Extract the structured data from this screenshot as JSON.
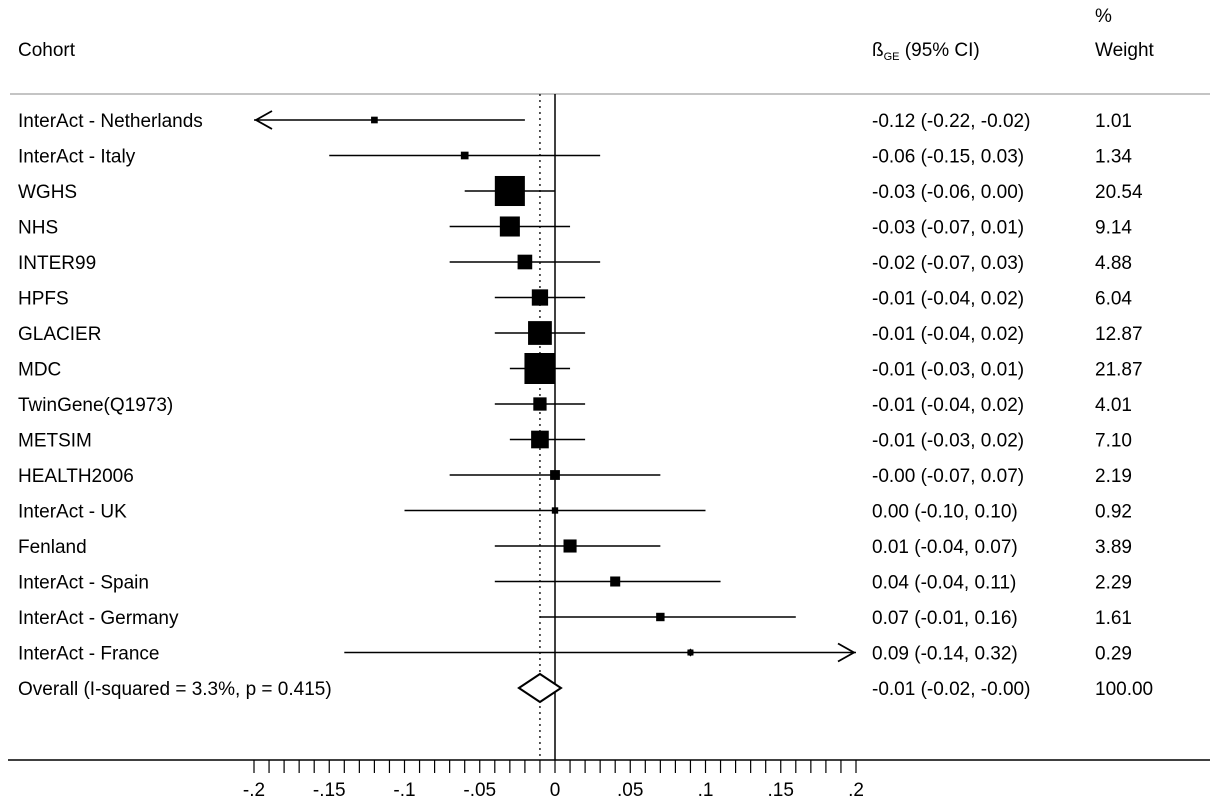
{
  "headers": {
    "cohort": "Cohort",
    "estimate_symbol": "ß",
    "estimate_subscript": "GE",
    "estimate_rest": " (95% CI)",
    "weight_line1": "%",
    "weight_line2": "Weight"
  },
  "chart_data": {
    "type": "forest",
    "xlim": [
      -0.2,
      0.2
    ],
    "null_line": 0,
    "pooled_line": -0.01,
    "x_ticks": [
      -0.2,
      -0.15,
      -0.1,
      -0.05,
      0,
      0.05,
      0.1,
      0.15,
      0.2
    ],
    "x_tick_labels": [
      "-.2",
      "-.15",
      "-.1",
      "-.05",
      "0",
      ".05",
      ".1",
      ".15",
      ".2"
    ],
    "minor_tick_step": 0.01,
    "rows": [
      {
        "label": "InterAct - Netherlands",
        "est": -0.12,
        "lo": -0.22,
        "hi": -0.02,
        "ci_text": "-0.12 (-0.22, -0.02)",
        "weight": "1.01",
        "w": 1.01,
        "arrow_left": true
      },
      {
        "label": "InterAct - Italy",
        "est": -0.06,
        "lo": -0.15,
        "hi": 0.03,
        "ci_text": "-0.06 (-0.15, 0.03)",
        "weight": "1.34",
        "w": 1.34
      },
      {
        "label": "WGHS",
        "est": -0.03,
        "lo": -0.06,
        "hi": 0.0,
        "ci_text": "-0.03 (-0.06, 0.00)",
        "weight": "20.54",
        "w": 20.54
      },
      {
        "label": "NHS",
        "est": -0.03,
        "lo": -0.07,
        "hi": 0.01,
        "ci_text": "-0.03 (-0.07, 0.01)",
        "weight": "9.14",
        "w": 9.14
      },
      {
        "label": "INTER99",
        "est": -0.02,
        "lo": -0.07,
        "hi": 0.03,
        "ci_text": "-0.02 (-0.07, 0.03)",
        "weight": "4.88",
        "w": 4.88
      },
      {
        "label": "HPFS",
        "est": -0.01,
        "lo": -0.04,
        "hi": 0.02,
        "ci_text": "-0.01 (-0.04, 0.02)",
        "weight": "6.04",
        "w": 6.04
      },
      {
        "label": "GLACIER",
        "est": -0.01,
        "lo": -0.04,
        "hi": 0.02,
        "ci_text": "-0.01 (-0.04, 0.02)",
        "weight": "12.87",
        "w": 12.87
      },
      {
        "label": "MDC",
        "est": -0.01,
        "lo": -0.03,
        "hi": 0.01,
        "ci_text": "-0.01 (-0.03, 0.01)",
        "weight": "21.87",
        "w": 21.87
      },
      {
        "label": "TwinGene(Q1973)",
        "est": -0.01,
        "lo": -0.04,
        "hi": 0.02,
        "ci_text": "-0.01 (-0.04, 0.02)",
        "weight": "4.01",
        "w": 4.01
      },
      {
        "label": "METSIM",
        "est": -0.01,
        "lo": -0.03,
        "hi": 0.02,
        "ci_text": "-0.01 (-0.03, 0.02)",
        "weight": "7.10",
        "w": 7.1
      },
      {
        "label": "HEALTH2006",
        "est": -0.0,
        "lo": -0.07,
        "hi": 0.07,
        "ci_text": "-0.00 (-0.07, 0.07)",
        "weight": "2.19",
        "w": 2.19
      },
      {
        "label": "InterAct - UK",
        "est": 0.0,
        "lo": -0.1,
        "hi": 0.1,
        "ci_text": "0.00 (-0.10, 0.10)",
        "weight": "0.92",
        "w": 0.92
      },
      {
        "label": "Fenland",
        "est": 0.01,
        "lo": -0.04,
        "hi": 0.07,
        "ci_text": "0.01 (-0.04, 0.07)",
        "weight": "3.89",
        "w": 3.89
      },
      {
        "label": "InterAct - Spain",
        "est": 0.04,
        "lo": -0.04,
        "hi": 0.11,
        "ci_text": "0.04 (-0.04, 0.11)",
        "weight": "2.29",
        "w": 2.29
      },
      {
        "label": "InterAct - Germany",
        "est": 0.07,
        "lo": -0.01,
        "hi": 0.16,
        "ci_text": "0.07 (-0.01, 0.16)",
        "weight": "1.61",
        "w": 1.61
      },
      {
        "label": "InterAct - France",
        "est": 0.09,
        "lo": -0.14,
        "hi": 0.32,
        "ci_text": "0.09 (-0.14, 0.32)",
        "weight": "0.29",
        "w": 0.29,
        "arrow_right": true
      }
    ],
    "overall": {
      "label": "Overall  (I-squared = 3.3%, p = 0.415)",
      "est": -0.01,
      "lo": -0.02,
      "hi": -0.0,
      "ci_text": "-0.01 (-0.02, -0.00)",
      "weight": "100.00"
    }
  }
}
